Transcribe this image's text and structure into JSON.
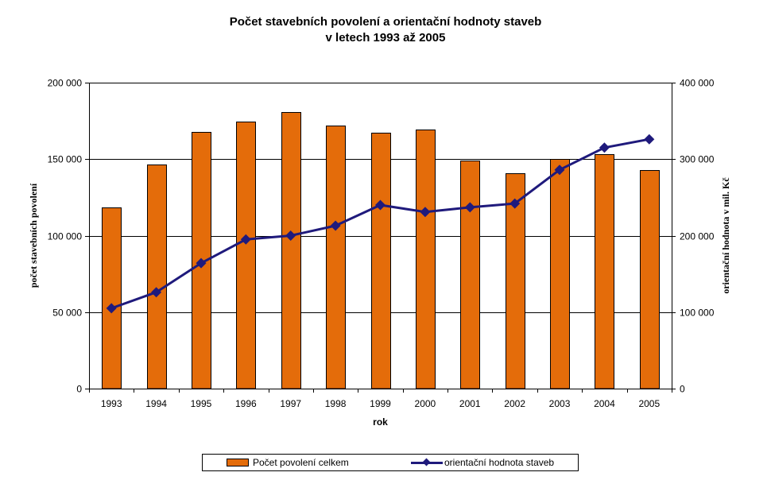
{
  "chart_data": {
    "type": "bar",
    "title": [
      "Počet stavebních povolení a orientační hodnoty staveb",
      "v letech 1993 až 2005"
    ],
    "xlabel": "rok",
    "ylabel": "počet stavebních povolení",
    "y2label": "orientační hodnota v mil. Kč",
    "categories": [
      "1993",
      "1994",
      "1995",
      "1996",
      "1997",
      "1998",
      "1999",
      "2000",
      "2001",
      "2002",
      "2003",
      "2004",
      "2005"
    ],
    "ylim": [
      0,
      200000
    ],
    "y2lim": [
      0,
      400000
    ],
    "yticks": [
      "0",
      "50 000",
      "100 000",
      "150 000",
      "200 000"
    ],
    "y2ticks": [
      "0",
      "100 000",
      "200 000",
      "300 000",
      "400 000"
    ],
    "grid": true,
    "legend_position": "bottom",
    "series": [
      {
        "name": "Počet povolení celkem",
        "type": "bar",
        "axis": "left",
        "color": "#E46C0A",
        "values": [
          118500,
          146500,
          168000,
          174500,
          181000,
          172000,
          167500,
          169500,
          149000,
          141000,
          150000,
          153500,
          143000
        ]
      },
      {
        "name": "orientační hodnota staveb",
        "type": "line",
        "axis": "right",
        "color": "#1F1A7C",
        "values": [
          105000,
          126000,
          164000,
          195000,
          200000,
          213000,
          240000,
          231000,
          237000,
          242000,
          286000,
          315000,
          326000
        ]
      }
    ]
  }
}
